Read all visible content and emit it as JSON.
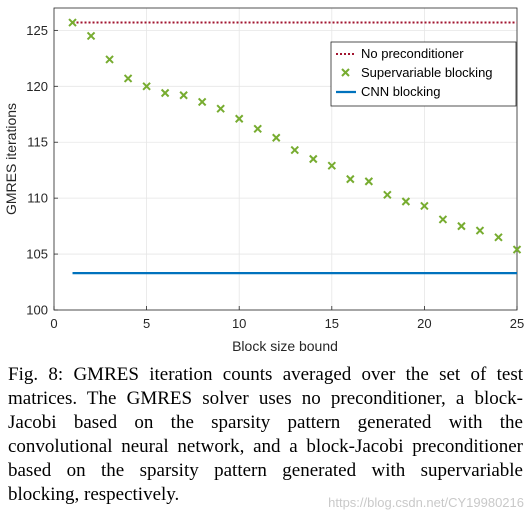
{
  "chart_data": {
    "type": "scatter",
    "xlabel": "Block size bound",
    "ylabel": "GMRES iterations",
    "xlim": [
      0,
      25
    ],
    "ylim": [
      100,
      127
    ],
    "xticks": [
      0,
      5,
      10,
      15,
      20,
      25
    ],
    "yticks": [
      100,
      105,
      110,
      115,
      120,
      125
    ],
    "grid": true,
    "legend_position": "top-right",
    "series": [
      {
        "name": "No preconditioner",
        "style": "dotted-line",
        "color": "#a2142f",
        "x": [
          1,
          25
        ],
        "y": [
          125.7,
          125.7
        ]
      },
      {
        "name": "Supervariable blocking",
        "style": "x-marker",
        "color": "#77ac30",
        "x": [
          1,
          2,
          3,
          4,
          5,
          6,
          7,
          8,
          9,
          10,
          11,
          12,
          13,
          14,
          15,
          16,
          17,
          18,
          19,
          20,
          21,
          22,
          23,
          24,
          25
        ],
        "y": [
          125.7,
          124.5,
          122.4,
          120.7,
          120.0,
          119.4,
          119.2,
          118.6,
          118.0,
          117.1,
          116.2,
          115.4,
          114.3,
          113.5,
          112.9,
          111.7,
          111.5,
          110.3,
          109.7,
          109.3,
          108.1,
          107.5,
          107.1,
          106.5,
          105.4
        ]
      },
      {
        "name": "CNN blocking",
        "style": "solid-line",
        "color": "#0072bd",
        "x": [
          1,
          25
        ],
        "y": [
          103.3,
          103.3
        ]
      }
    ]
  },
  "caption": "Fig. 8: GMRES iteration counts averaged over the set of test matrices. The GMRES solver uses no preconditioner, a block-Jacobi based on the sparsity pattern generated with the convolutional neural network, and a block-Jacobi preconditioner based on the sparsity pattern generated with supervariable blocking, respectively.",
  "watermark": "https://blog.csdn.net/CY19980216"
}
